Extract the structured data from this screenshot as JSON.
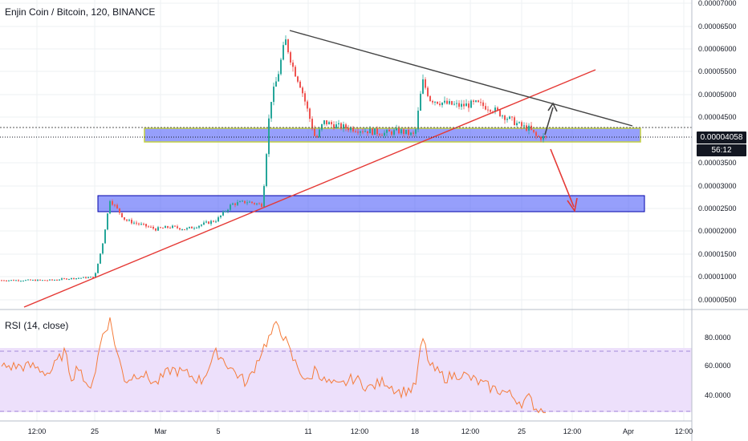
{
  "header": {
    "title": "Enjin Coin / Bitcoin, 120, BINANCE"
  },
  "price_axis": {
    "ticks": [
      "0.00007000",
      "0.00006500",
      "0.00006000",
      "0.00005500",
      "0.00005000",
      "0.00004500",
      "0.00003500",
      "0.00003000",
      "0.00002500",
      "0.00002000",
      "0.00001500",
      "0.00001000",
      "0.00000500"
    ],
    "current_price": "0.00004058",
    "countdown": "56:12"
  },
  "rsi": {
    "label": "RSI (14, close)",
    "ticks": [
      "80.0000",
      "60.0000",
      "40.0000"
    ],
    "upper_band": 70,
    "lower_band": 30
  },
  "time_axis": {
    "ticks": [
      "12:00",
      "25",
      "Mar",
      "5",
      "11",
      "12:00",
      "18",
      "12:00",
      "25",
      "12:00",
      "Apr",
      "12:00"
    ]
  },
  "colors": {
    "candle_up": "#26a69a",
    "candle_down": "#ef5350",
    "support_zone": "#3f51f7",
    "trendline_up": "#e53935",
    "trendline_down": "#444444",
    "rsi_line": "#f57c3b",
    "rsi_band": "#ede0fb"
  },
  "chart_data": {
    "type": "candlestick",
    "title": "Enjin Coin / Bitcoin, 120, BINANCE",
    "ylim": [
      3e-06,
      7.03e-05
    ],
    "price_path": [
      [
        "Feb 22",
        9.3e-06
      ],
      [
        "Feb 23",
        9.6e-06
      ],
      [
        "Feb 24",
        9.8e-06
      ],
      [
        "Feb 25",
        1e-05
      ],
      [
        "Feb 25 12:00",
        1.7e-05
      ],
      [
        "Feb 26",
        2.7e-05
      ],
      [
        "Feb 27",
        2.25e-05
      ],
      [
        "Feb 28",
        2.15e-05
      ],
      [
        "Mar 1",
        2.05e-05
      ],
      [
        "Mar 2",
        2.1e-05
      ],
      [
        "Mar 3",
        2.05e-05
      ],
      [
        "Mar 4",
        2.15e-05
      ],
      [
        "Mar 5",
        2.25e-05
      ],
      [
        "Mar 6",
        2.6e-05
      ],
      [
        "Mar 7",
        2.65e-05
      ],
      [
        "Mar 8",
        2.58e-05
      ],
      [
        "Mar 8 12:00",
        4.8e-05
      ],
      [
        "Mar 9",
        5.4e-05
      ],
      [
        "Mar 9 12:00",
        6.2e-05
      ],
      [
        "Mar 10",
        5.6e-05
      ],
      [
        "Mar 10 12:00",
        5.2e-05
      ],
      [
        "Mar 11",
        4.6e-05
      ],
      [
        "Mar 11 12:00",
        4e-05
      ],
      [
        "Mar 12",
        4.4e-05
      ],
      [
        "Mar 13",
        4.3e-05
      ],
      [
        "Mar 14",
        4.25e-05
      ],
      [
        "Mar 15",
        4.2e-05
      ],
      [
        "Mar 16",
        4.15e-05
      ],
      [
        "Mar 17",
        4.2e-05
      ],
      [
        "Mar 18",
        4.1e-05
      ],
      [
        "Mar 18 12:00",
        5.3e-05
      ],
      [
        "Mar 19",
        4.9e-05
      ],
      [
        "Mar 20",
        4.8e-05
      ],
      [
        "Mar 21",
        4.75e-05
      ],
      [
        "Mar 22",
        4.8e-05
      ],
      [
        "Mar 23",
        4.7e-05
      ],
      [
        "Mar 24",
        4.5e-05
      ],
      [
        "Mar 25",
        4.3e-05
      ],
      [
        "Mar 25 12:00",
        4.25e-05
      ],
      [
        "Mar 26",
        4.06e-05
      ]
    ],
    "rsi_path": [
      [
        "Feb 21",
        60
      ],
      [
        "Feb 22",
        55
      ],
      [
        "Feb 23",
        70
      ],
      [
        "Feb 23 12:00",
        52
      ],
      [
        "Feb 24",
        62
      ],
      [
        "Feb 24 12:00",
        42
      ],
      [
        "Feb 25",
        55
      ],
      [
        "Feb 25 12:00",
        82
      ],
      [
        "Feb 26",
        92
      ],
      [
        "Feb 26 12:00",
        68
      ],
      [
        "Feb 27",
        50
      ],
      [
        "Feb 28",
        56
      ],
      [
        "Mar 1",
        48
      ],
      [
        "Mar 2",
        58
      ],
      [
        "Mar 3",
        55
      ],
      [
        "Mar 4",
        50
      ],
      [
        "Mar 5",
        70
      ],
      [
        "Mar 6",
        58
      ],
      [
        "Mar 7",
        48
      ],
      [
        "Mar 8",
        72
      ],
      [
        "Mar 9",
        90
      ],
      [
        "Mar 9 12:00",
        78
      ],
      [
        "Mar 10",
        65
      ],
      [
        "Mar 11",
        48
      ],
      [
        "Mar 11 12:00",
        60
      ],
      [
        "Mar 12",
        50
      ],
      [
        "Mar 13",
        46
      ],
      [
        "Mar 14",
        52
      ],
      [
        "Mar 15",
        45
      ],
      [
        "Mar 16",
        50
      ],
      [
        "Mar 17",
        42
      ],
      [
        "Mar 18",
        45
      ],
      [
        "Mar 18 12:00",
        80
      ],
      [
        "Mar 19",
        60
      ],
      [
        "Mar 20",
        52
      ],
      [
        "Mar 21",
        55
      ],
      [
        "Mar 22",
        50
      ],
      [
        "Mar 23",
        45
      ],
      [
        "Mar 24",
        42
      ],
      [
        "Mar 25",
        35
      ],
      [
        "Mar 25 12:00",
        38
      ],
      [
        "Mar 26",
        30
      ]
    ],
    "support_zones": [
      [
        3.9e-05,
        4.25e-05
      ],
      [
        2.4e-05,
        2.8e-05
      ]
    ],
    "trendlines": [
      {
        "from": [
          "Feb 20",
          5e-07
        ],
        "to": [
          "Mar 29",
          5.55e-05
        ]
      },
      {
        "from": [
          "Mar 9",
          6.4e-05
        ],
        "to": [
          "Mar 31",
          4.25e-05
        ]
      }
    ]
  }
}
